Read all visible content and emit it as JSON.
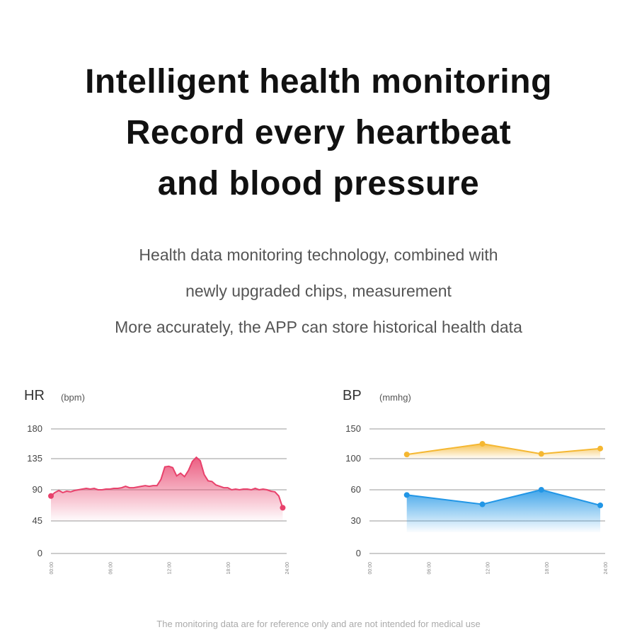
{
  "headline": {
    "line1": "Intelligent health monitoring",
    "line2": "Record every heartbeat",
    "line3": "and blood pressure"
  },
  "subtext": {
    "line1": "Health data monitoring technology, combined with",
    "line2": "newly upgraded chips, measurement",
    "line3": "More accurately, the APP can store historical health data"
  },
  "disclaimer": "The monitoring data are for reference only and are not intended for medical use",
  "colors": {
    "hr_line": "#e8416b",
    "bp_systolic": "#f5b731",
    "bp_diastolic": "#2196e6",
    "grid": "#bbbbbb"
  },
  "chart_data": [
    {
      "type": "area",
      "title": "HR",
      "unit": "(bpm)",
      "yticks": [
        "180",
        "135",
        "90",
        "45",
        "0"
      ],
      "ylim": [
        0,
        180
      ],
      "xticks": [
        "00:00",
        "06:00",
        "12:00",
        "18:00",
        "24:00"
      ],
      "xlim": [
        0,
        24
      ],
      "grid": true,
      "series": [
        {
          "x": [
            0,
            0.4,
            0.8,
            1.2,
            1.6,
            2.0,
            2.4,
            2.8,
            3.2,
            3.6,
            4.0,
            4.4,
            4.8,
            5.2,
            5.6,
            6.0,
            6.4,
            6.8,
            7.2,
            7.6,
            8.0,
            8.4,
            8.8,
            9.2,
            9.6,
            10.0,
            10.4,
            10.8,
            11.2,
            11.6,
            12.0,
            12.4,
            12.8,
            13.2,
            13.6,
            14.0,
            14.4,
            14.8,
            15.2,
            15.6,
            16.0,
            16.4,
            16.8,
            17.2,
            17.6,
            18.0,
            18.4,
            18.8,
            19.2,
            19.6,
            20.0,
            20.4,
            20.8,
            21.2,
            21.6,
            22.0,
            22.4,
            22.8,
            23.2,
            23.6
          ],
          "values": [
            81,
            86,
            89,
            86,
            88,
            87,
            89,
            90,
            91,
            92,
            91,
            92,
            90,
            90,
            91,
            91,
            92,
            92,
            93,
            95,
            93,
            93,
            94,
            95,
            96,
            95,
            96,
            96,
            105,
            123,
            124,
            122,
            110,
            114,
            109,
            118,
            131,
            137,
            132,
            112,
            103,
            102,
            97,
            95,
            93,
            93,
            90,
            91,
            90,
            91,
            91,
            90,
            92,
            90,
            91,
            90,
            88,
            87,
            81,
            64
          ]
        }
      ]
    },
    {
      "type": "line",
      "title": "BP",
      "unit": "(mmhg)",
      "yticks": [
        "150",
        "100",
        "60",
        "30",
        "0"
      ],
      "xticks": [
        "00:00",
        "06:00",
        "12:00",
        "18:00",
        "24:00"
      ],
      "xlim": [
        0,
        24
      ],
      "grid": true,
      "series": [
        {
          "x": [
            3.8,
            11.5,
            17.5,
            23.5
          ],
          "values": [
            107,
            125,
            108,
            117
          ]
        },
        {
          "x": [
            3.8,
            11.5,
            17.5,
            23.5
          ],
          "values": [
            55,
            46,
            60,
            45
          ]
        }
      ]
    }
  ]
}
